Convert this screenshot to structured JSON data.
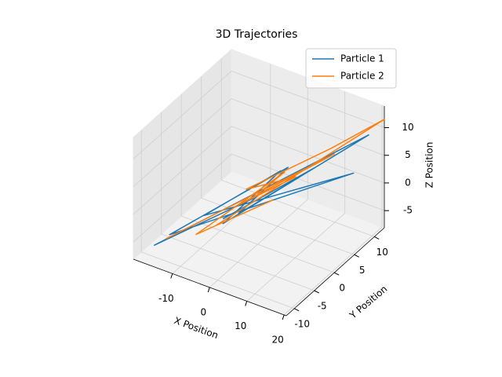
{
  "chart_data": {
    "type": "line3d",
    "title": "3D Trajectories",
    "xlabel": "X Position",
    "ylabel": "Y Position",
    "zlabel": "Z Position",
    "xlim": [
      -20.5,
      20.6
    ],
    "ylim": [
      -12,
      12.5
    ],
    "zlim": [
      -8.1,
      13.9
    ],
    "xticks": [
      -10,
      0,
      10,
      20
    ],
    "yticks": [
      -10,
      -5,
      0,
      5,
      10
    ],
    "zticks": [
      -5,
      0,
      5,
      10
    ],
    "grid": true,
    "legend": "upper right",
    "series": [
      {
        "name": "Particle 1",
        "color": "#1f77b4",
        "x": [
          -1,
          -17,
          18,
          -5,
          3,
          -8,
          15,
          -14,
          6,
          -3,
          10,
          -6,
          2
        ],
        "y": [
          0,
          -10,
          11,
          -4,
          3,
          -6,
          10,
          -9,
          2,
          -2,
          5,
          -3,
          1
        ],
        "z": [
          0,
          -6,
          9,
          -3,
          4,
          -1,
          2,
          -4,
          6,
          -2,
          5,
          -3,
          1
        ]
      },
      {
        "name": "Particle 2",
        "color": "#ff7f0e",
        "x": [
          -15,
          12,
          -4,
          6,
          -2,
          9,
          20,
          -6,
          3,
          -9,
          4,
          0
        ],
        "y": [
          -9,
          8,
          -2,
          4,
          -1,
          10,
          13,
          -5,
          1,
          -7,
          3,
          0
        ],
        "z": [
          -5,
          6,
          -1,
          3,
          2,
          5,
          11,
          -3,
          0,
          -4,
          4,
          1
        ]
      }
    ]
  }
}
